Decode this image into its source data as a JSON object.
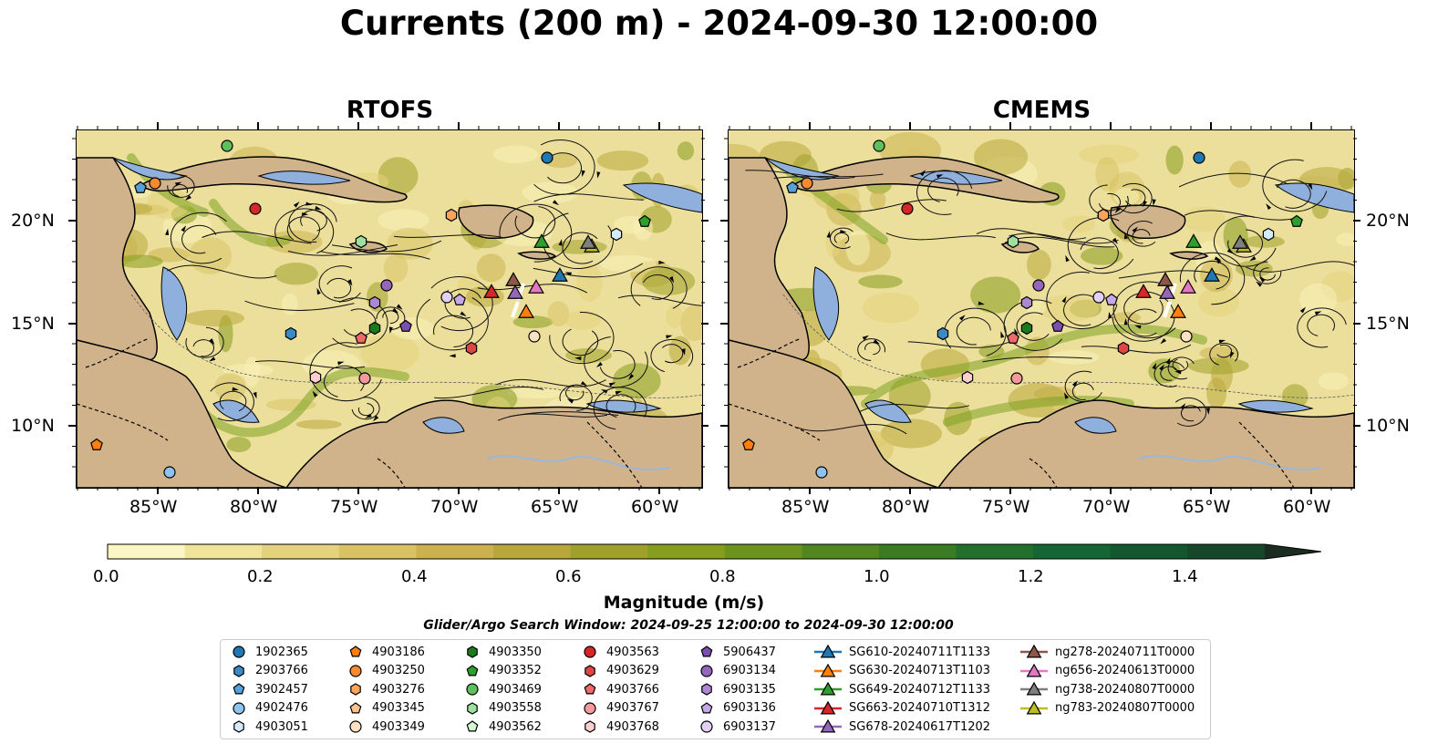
{
  "title": "Currents (200 m) - 2024-09-30 12:00:00",
  "panels": [
    {
      "title": "RTOFS"
    },
    {
      "title": "CMEMS"
    }
  ],
  "axes": {
    "lon_ticks": [
      "85°W",
      "80°W",
      "75°W",
      "70°W",
      "65°W",
      "60°W"
    ],
    "lat_ticks": [
      "20°N",
      "15°N",
      "10°N"
    ]
  },
  "colorbar": {
    "title": "Magnitude (m/s)",
    "tick_labels": [
      "0.0",
      "0.2",
      "0.4",
      "0.6",
      "0.8",
      "1.0",
      "1.2",
      "1.4"
    ],
    "range": [
      0.0,
      1.5
    ],
    "extend": "max",
    "colors": [
      "#fbf7c4",
      "#f0e49a",
      "#e4d27c",
      "#d8c264",
      "#ccb24e",
      "#b9a73c",
      "#9fa12a",
      "#869d1d",
      "#6c931c",
      "#52861f",
      "#3b7b24",
      "#226f2e",
      "#166534",
      "#13572f",
      "#16472a",
      "#193926",
      "#1b2d1e"
    ]
  },
  "search_window": "Glider/Argo Search Window: 2024-09-25 12:00:00 to 2024-09-30 12:00:00",
  "legend": [
    {
      "label": "1902365",
      "marker": "circle",
      "color": "#1f77b4"
    },
    {
      "label": "2903766",
      "marker": "hexagon",
      "color": "#3a8ac6"
    },
    {
      "label": "3902457",
      "marker": "pentagon",
      "color": "#5aa0d8"
    },
    {
      "label": "4902476",
      "marker": "circle",
      "color": "#8ec3ee"
    },
    {
      "label": "4903051",
      "marker": "hexagon",
      "color": "#d4ebfb"
    },
    {
      "label": "4903186",
      "marker": "pentagon",
      "color": "#ff7f0e"
    },
    {
      "label": "4903250",
      "marker": "circle",
      "color": "#f58a30"
    },
    {
      "label": "4903276",
      "marker": "hexagon",
      "color": "#f9a45c"
    },
    {
      "label": "4903345",
      "marker": "pentagon",
      "color": "#fcc28d"
    },
    {
      "label": "4903349",
      "marker": "circle",
      "color": "#fde1c3"
    },
    {
      "label": "4903350",
      "marker": "hexagon",
      "color": "#1b7a1b"
    },
    {
      "label": "4903352",
      "marker": "pentagon",
      "color": "#2ca02c"
    },
    {
      "label": "4903469",
      "marker": "circle",
      "color": "#5cc15c"
    },
    {
      "label": "4903558",
      "marker": "hexagon",
      "color": "#9ee09e"
    },
    {
      "label": "4903562",
      "marker": "pentagon",
      "color": "#d6f7d6"
    },
    {
      "label": "4903563",
      "marker": "circle",
      "color": "#d62728"
    },
    {
      "label": "4903629",
      "marker": "hexagon",
      "color": "#e04545"
    },
    {
      "label": "4903766",
      "marker": "pentagon",
      "color": "#ec6a6a"
    },
    {
      "label": "4903767",
      "marker": "circle",
      "color": "#f59a9a"
    },
    {
      "label": "4903768",
      "marker": "hexagon",
      "color": "#fbcfcf"
    },
    {
      "label": "5906437",
      "marker": "pentagon",
      "color": "#7b4fb0"
    },
    {
      "label": "6903134",
      "marker": "circle",
      "color": "#9467bd"
    },
    {
      "label": "6903135",
      "marker": "hexagon",
      "color": "#ad87d4"
    },
    {
      "label": "6903136",
      "marker": "pentagon",
      "color": "#c6a8e6"
    },
    {
      "label": "6903137",
      "marker": "circle",
      "color": "#e2d0f5"
    },
    {
      "label": "SG610-20240711T1133",
      "marker": "triangle-line",
      "color": "#1f77b4"
    },
    {
      "label": "SG630-20240713T1103",
      "marker": "triangle-line",
      "color": "#ff7f0e"
    },
    {
      "label": "SG649-20240712T1133",
      "marker": "triangle-line",
      "color": "#2ca02c"
    },
    {
      "label": "SG663-20240710T1312",
      "marker": "triangle-line",
      "color": "#d62728"
    },
    {
      "label": "SG678-20240617T1202",
      "marker": "triangle-line",
      "color": "#9467bd"
    },
    {
      "label": "ng278-20240711T0000",
      "marker": "triangle-line",
      "color": "#8c564b"
    },
    {
      "label": "ng656-20240613T0000",
      "marker": "triangle-line",
      "color": "#e377c2"
    },
    {
      "label": "ng738-20240807T0000",
      "marker": "triangle-line",
      "color": "#7f7f7f"
    },
    {
      "label": "ng783-20240807T0000",
      "marker": "triangle-line",
      "color": "#bcbd22"
    }
  ]
}
